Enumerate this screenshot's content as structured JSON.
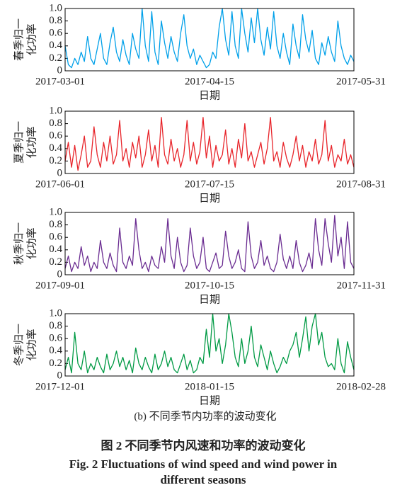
{
  "chart_data": [
    {
      "type": "line",
      "ylabel": [
        "春季归一",
        "化功率"
      ],
      "xlabel": "日期",
      "color": "#00a0e9",
      "categories": [
        "2017-03-01",
        null,
        null,
        null,
        null,
        null,
        null,
        null,
        null,
        null,
        null,
        null,
        null,
        null,
        null,
        null,
        null,
        null,
        null,
        null,
        null,
        null,
        null,
        null,
        null,
        null,
        null,
        null,
        null,
        null,
        null,
        null,
        null,
        null,
        null,
        null,
        null,
        null,
        null,
        null,
        null,
        null,
        null,
        null,
        null,
        "2017-04-15",
        null,
        null,
        null,
        null,
        null,
        null,
        null,
        null,
        null,
        null,
        null,
        null,
        null,
        null,
        null,
        null,
        null,
        null,
        null,
        null,
        null,
        null,
        null,
        null,
        null,
        null,
        null,
        null,
        null,
        null,
        null,
        null,
        null,
        null,
        null,
        null,
        null,
        null,
        null,
        null,
        null,
        null,
        null,
        null,
        "2017-05-31"
      ],
      "values": [
        0.4,
        0.1,
        0.05,
        0.2,
        0.1,
        0.3,
        0.15,
        0.55,
        0.2,
        0.1,
        0.35,
        0.6,
        0.2,
        0.1,
        0.45,
        0.7,
        0.3,
        0.15,
        0.5,
        0.25,
        0.1,
        0.6,
        0.35,
        0.2,
        1.0,
        0.4,
        0.15,
        0.95,
        0.3,
        0.1,
        0.8,
        0.45,
        0.2,
        0.55,
        0.3,
        0.15,
        0.6,
        0.9,
        0.4,
        0.2,
        0.35,
        0.1,
        0.25,
        0.15,
        0.05,
        0.1,
        0.3,
        0.2,
        0.7,
        1.0,
        0.5,
        0.25,
        0.95,
        0.4,
        0.2,
        1.0,
        0.6,
        0.3,
        0.85,
        0.45,
        1.0,
        0.5,
        0.25,
        0.7,
        0.35,
        0.95,
        0.4,
        0.2,
        0.6,
        0.3,
        0.1,
        0.75,
        0.4,
        0.2,
        0.9,
        0.5,
        0.3,
        0.65,
        0.2,
        0.1,
        0.45,
        0.25,
        0.55,
        0.3,
        0.15,
        0.8,
        0.4,
        0.2,
        0.1,
        0.25,
        0.15
      ],
      "ylim": [
        0,
        1
      ],
      "yticks": [
        0,
        0.2,
        0.4,
        0.6,
        0.8,
        {
          "value": 1,
          "label": "1.0"
        }
      ]
    },
    {
      "type": "line",
      "ylabel": [
        "夏季归一",
        "化功率"
      ],
      "xlabel": "日期",
      "color": "#e8242a",
      "categories": [
        "2017-06-01",
        null,
        null,
        null,
        null,
        null,
        null,
        null,
        null,
        null,
        null,
        null,
        null,
        null,
        null,
        null,
        null,
        null,
        null,
        null,
        null,
        null,
        null,
        null,
        null,
        null,
        null,
        null,
        null,
        null,
        null,
        null,
        null,
        null,
        null,
        null,
        null,
        null,
        null,
        null,
        null,
        null,
        null,
        null,
        null,
        "2017-07-15",
        null,
        null,
        null,
        null,
        null,
        null,
        null,
        null,
        null,
        null,
        null,
        null,
        null,
        null,
        null,
        null,
        null,
        null,
        null,
        null,
        null,
        null,
        null,
        null,
        null,
        null,
        null,
        null,
        null,
        null,
        null,
        null,
        null,
        null,
        null,
        null,
        null,
        null,
        null,
        null,
        null,
        null,
        null,
        null,
        "2017-08-31"
      ],
      "values": [
        0.2,
        0.5,
        0.1,
        0.45,
        0.05,
        0.3,
        0.6,
        0.1,
        0.2,
        0.75,
        0.3,
        0.1,
        0.5,
        0.2,
        0.6,
        0.15,
        0.3,
        0.85,
        0.2,
        0.4,
        0.1,
        0.5,
        0.25,
        0.6,
        0.1,
        0.3,
        0.7,
        0.2,
        0.45,
        0.1,
        0.9,
        0.3,
        0.15,
        0.55,
        0.2,
        0.4,
        0.1,
        0.3,
        0.85,
        0.2,
        0.5,
        0.15,
        0.35,
        0.9,
        0.25,
        0.6,
        0.1,
        0.45,
        0.2,
        0.3,
        0.7,
        0.15,
        0.4,
        0.1,
        0.55,
        0.25,
        0.8,
        0.2,
        0.35,
        0.1,
        0.3,
        0.5,
        0.15,
        0.4,
        0.9,
        0.2,
        0.35,
        0.1,
        0.5,
        0.25,
        0.1,
        0.3,
        0.6,
        0.2,
        0.45,
        0.1,
        0.35,
        0.2,
        0.55,
        0.15,
        0.3,
        0.85,
        0.2,
        0.45,
        0.1,
        0.3,
        0.2,
        0.55,
        0.15,
        0.3,
        0.1
      ],
      "ylim": [
        0,
        1
      ],
      "yticks": [
        0,
        0.2,
        0.4,
        0.6,
        0.8,
        {
          "value": 1,
          "label": "1.0"
        }
      ]
    },
    {
      "type": "line",
      "ylabel": [
        "秋季归一",
        "化功率"
      ],
      "xlabel": "日期",
      "color": "#6a2c91",
      "categories": [
        "2017-09-01",
        null,
        null,
        null,
        null,
        null,
        null,
        null,
        null,
        null,
        null,
        null,
        null,
        null,
        null,
        null,
        null,
        null,
        null,
        null,
        null,
        null,
        null,
        null,
        null,
        null,
        null,
        null,
        null,
        null,
        null,
        null,
        null,
        null,
        null,
        null,
        null,
        null,
        null,
        null,
        null,
        null,
        null,
        null,
        null,
        "2017-10-15",
        null,
        null,
        null,
        null,
        null,
        null,
        null,
        null,
        null,
        null,
        null,
        null,
        null,
        null,
        null,
        null,
        null,
        null,
        null,
        null,
        null,
        null,
        null,
        null,
        null,
        null,
        null,
        null,
        null,
        null,
        null,
        null,
        null,
        null,
        null,
        null,
        null,
        null,
        null,
        null,
        null,
        null,
        null,
        null,
        "2017-11-31"
      ],
      "values": [
        0.1,
        0.3,
        0.05,
        0.2,
        0.1,
        0.45,
        0.15,
        0.3,
        0.05,
        0.2,
        0.1,
        0.55,
        0.2,
        0.1,
        0.35,
        0.15,
        0.05,
        0.75,
        0.2,
        0.1,
        0.3,
        0.15,
        0.9,
        0.4,
        0.1,
        0.2,
        0.05,
        0.3,
        0.15,
        0.1,
        0.45,
        0.2,
        0.9,
        0.3,
        0.1,
        0.6,
        0.2,
        0.05,
        0.15,
        0.75,
        0.3,
        0.1,
        0.2,
        0.6,
        0.1,
        0.05,
        0.2,
        0.35,
        0.1,
        0.15,
        0.7,
        0.3,
        0.1,
        0.2,
        0.4,
        0.1,
        0.05,
        0.85,
        0.3,
        0.1,
        0.2,
        0.55,
        0.15,
        0.3,
        0.1,
        0.05,
        0.2,
        0.65,
        0.25,
        0.1,
        0.3,
        0.1,
        0.55,
        0.2,
        0.05,
        0.15,
        0.35,
        0.1,
        0.9,
        0.4,
        0.15,
        0.9,
        0.5,
        0.2,
        0.95,
        0.3,
        0.6,
        0.1,
        0.85,
        0.2,
        0.1
      ],
      "ylim": [
        0,
        1
      ],
      "yticks": [
        0,
        0.2,
        0.4,
        0.6,
        0.8,
        {
          "value": 1,
          "label": "1.0"
        }
      ]
    },
    {
      "type": "line",
      "ylabel": [
        "冬季归一",
        "化功率"
      ],
      "xlabel": "日期",
      "color": "#009a44",
      "categories": [
        "2017-12-01",
        null,
        null,
        null,
        null,
        null,
        null,
        null,
        null,
        null,
        null,
        null,
        null,
        null,
        null,
        null,
        null,
        null,
        null,
        null,
        null,
        null,
        null,
        null,
        null,
        null,
        null,
        null,
        null,
        null,
        null,
        null,
        null,
        null,
        null,
        null,
        null,
        null,
        null,
        null,
        null,
        null,
        null,
        null,
        null,
        "2018-01-15",
        null,
        null,
        null,
        null,
        null,
        null,
        null,
        null,
        null,
        null,
        null,
        null,
        null,
        null,
        null,
        null,
        null,
        null,
        null,
        null,
        null,
        null,
        null,
        null,
        null,
        null,
        null,
        null,
        null,
        null,
        null,
        null,
        null,
        null,
        null,
        null,
        null,
        null,
        null,
        null,
        null,
        null,
        null,
        null,
        "2018-02-28"
      ],
      "values": [
        0.1,
        0.3,
        0.05,
        0.7,
        0.2,
        0.1,
        0.4,
        0.05,
        0.2,
        0.1,
        0.3,
        0.15,
        0.05,
        0.35,
        0.1,
        0.2,
        0.4,
        0.15,
        0.3,
        0.1,
        0.25,
        0.05,
        0.45,
        0.2,
        0.1,
        0.3,
        0.15,
        0.05,
        0.35,
        0.1,
        0.2,
        0.4,
        0.15,
        0.3,
        0.1,
        0.05,
        0.2,
        0.35,
        0.1,
        0.25,
        0.05,
        0.1,
        0.3,
        0.2,
        0.75,
        0.3,
        1.0,
        0.4,
        0.6,
        0.2,
        0.5,
        1.0,
        0.7,
        0.3,
        0.15,
        0.6,
        0.2,
        0.4,
        0.8,
        0.3,
        0.15,
        0.5,
        0.3,
        0.1,
        0.4,
        0.2,
        0.05,
        0.15,
        0.3,
        0.2,
        0.4,
        0.5,
        0.7,
        0.3,
        0.6,
        0.95,
        0.4,
        0.8,
        1.0,
        0.5,
        0.7,
        0.3,
        0.15,
        0.2,
        0.1,
        0.6,
        0.2,
        0.05,
        0.55,
        0.3,
        0.1
      ],
      "ylim": [
        0,
        1
      ],
      "yticks": [
        0,
        0.2,
        0.4,
        0.6,
        0.8,
        {
          "value": 1,
          "label": "1.0"
        }
      ]
    }
  ],
  "subcaption": "(b) 不同季节内功率的波动变化",
  "figure_caption_cn": "图 2 不同季节内风速和功率的波动变化",
  "figure_caption_en": [
    "Fig. 2    Fluctuations of wind speed and wind power in",
    "different seasons"
  ]
}
